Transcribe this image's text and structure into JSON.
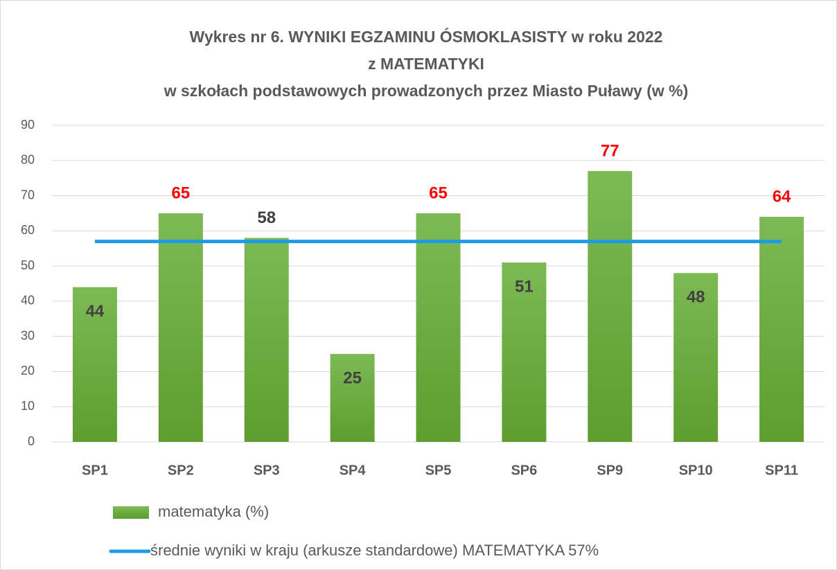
{
  "chart_data": {
    "type": "bar",
    "title": [
      "Wykres nr 6. WYNIKI EGZAMINU ÓSMOKLASISTY w roku 2022",
      "z MATEMATYKI",
      "w szkołach podstawowych prowadzonych przez Miasto Puławy (w %)"
    ],
    "categories": [
      "SP1",
      "SP2",
      "SP3",
      "SP4",
      "SP5",
      "SP6",
      "SP9",
      "SP10",
      "SP11"
    ],
    "series": [
      {
        "name": "matematyka (%)",
        "type": "bar",
        "color": "#6aa83a",
        "values": [
          44,
          65,
          58,
          25,
          65,
          51,
          77,
          48,
          64
        ],
        "label_colors": [
          "#404040",
          "#ff0000",
          "#404040",
          "#404040",
          "#ff0000",
          "#404040",
          "#ff0000",
          "#404040",
          "#ff0000"
        ]
      },
      {
        "name": "średnie wyniki w kraju (arkusze standardowe) MATEMATYKA 57%",
        "type": "line",
        "color": "#1e9be8",
        "values": [
          57,
          57,
          57,
          57,
          57,
          57,
          57,
          57,
          57
        ]
      }
    ],
    "ylim": [
      0,
      90
    ],
    "yticks": [
      0,
      10,
      20,
      30,
      40,
      50,
      60,
      70,
      80,
      90
    ],
    "grid": true
  }
}
